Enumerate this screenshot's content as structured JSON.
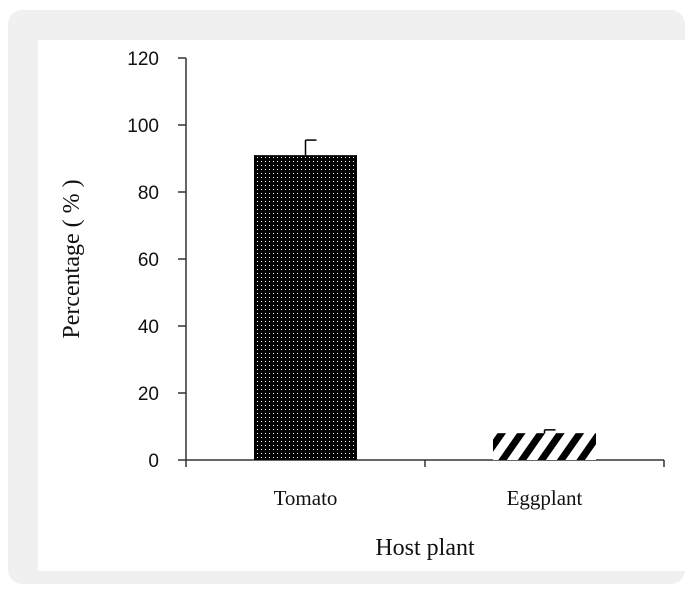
{
  "chart_data": {
    "type": "bar",
    "categories": [
      "Tomato",
      "Eggplant"
    ],
    "values": [
      91,
      8
    ],
    "error": [
      4.5,
      1
    ],
    "xlabel": "Host plant",
    "ylabel": "Percentage ( % )",
    "ylim": [
      0,
      120
    ],
    "yticks": [
      0,
      20,
      40,
      60,
      80,
      100,
      120
    ],
    "grid": false,
    "fills": [
      "dense-dot",
      "diagonal-hatch"
    ],
    "colors": {
      "bar": "#000000",
      "axis": "#333333"
    }
  }
}
